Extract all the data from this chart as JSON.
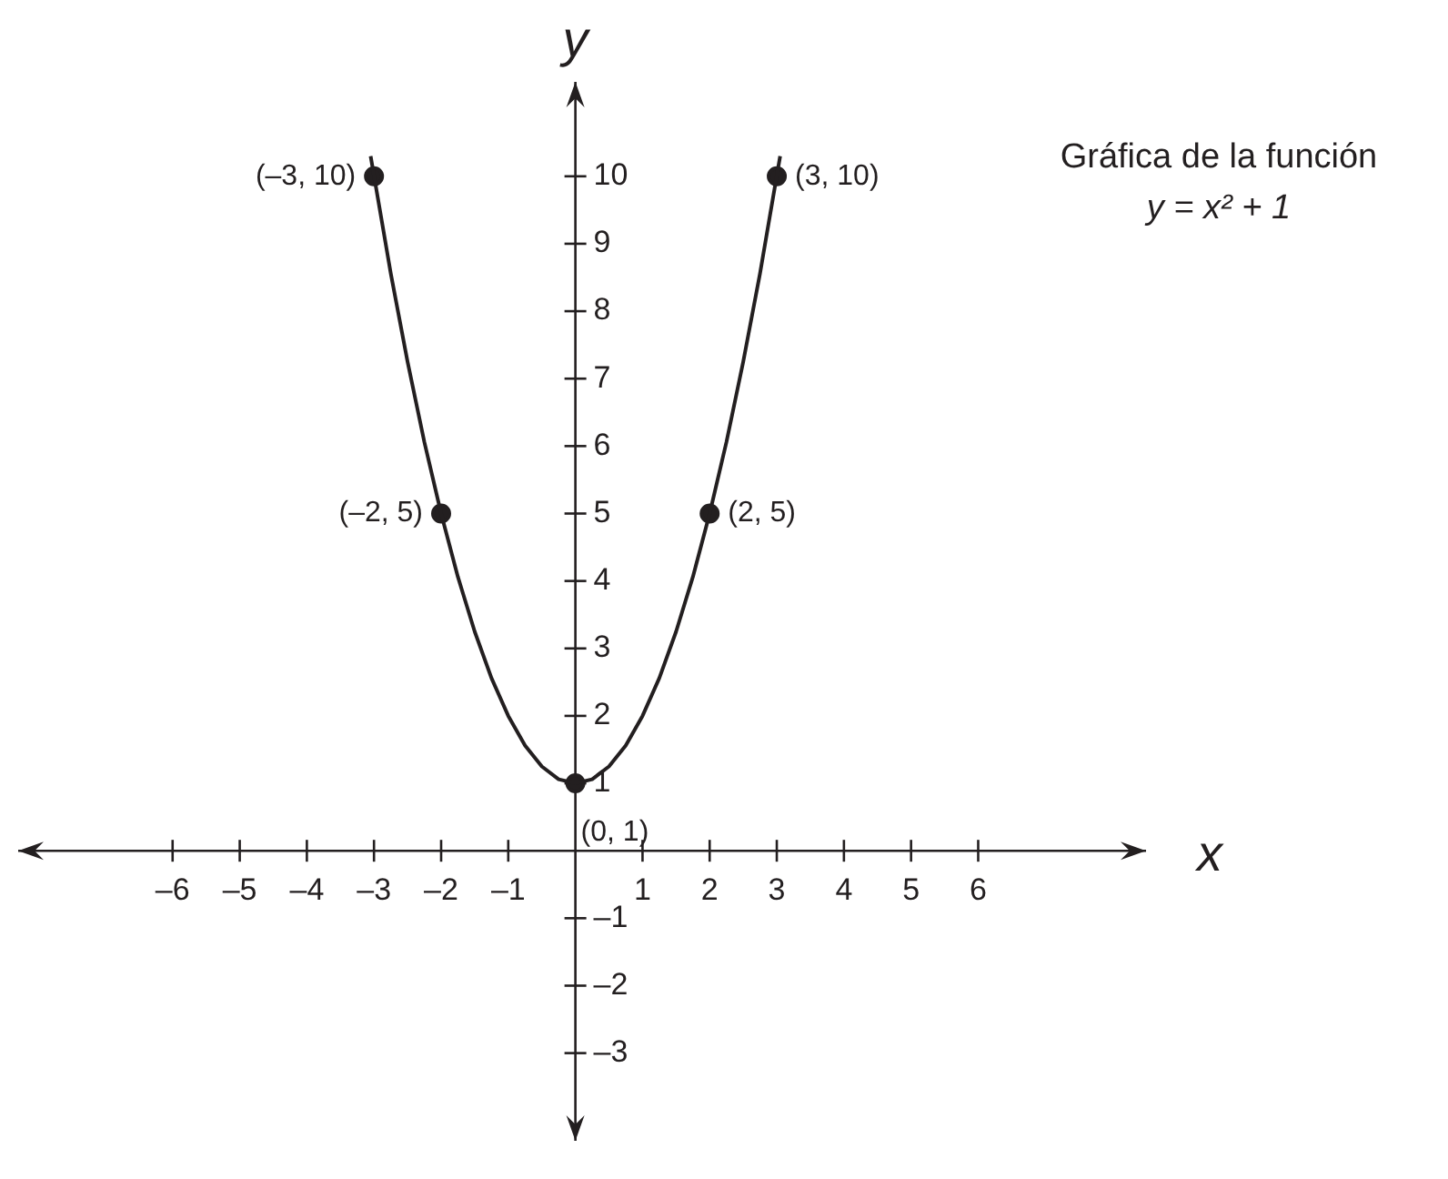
{
  "chart_data": {
    "type": "line",
    "title": "Gráfica de la función",
    "subtitle": "y = x² + 1",
    "xlabel": "x",
    "ylabel": "y",
    "xlim": [
      -8.3,
      8.5
    ],
    "ylim": [
      -4.3,
      11.4
    ],
    "xticks": [
      {
        "value": -6,
        "label": "–6"
      },
      {
        "value": -5,
        "label": "–5"
      },
      {
        "value": -4,
        "label": "–4"
      },
      {
        "value": -3,
        "label": "–3"
      },
      {
        "value": -2,
        "label": "–2"
      },
      {
        "value": -1,
        "label": "–1"
      },
      1,
      2,
      3,
      4,
      5,
      6
    ],
    "yticks": [
      {
        "value": -3,
        "label": "–3"
      },
      {
        "value": -2,
        "label": "–2"
      },
      {
        "value": -1,
        "label": "–1"
      },
      1,
      2,
      3,
      4,
      5,
      6,
      7,
      8,
      9,
      10
    ],
    "series": [
      {
        "type": "line",
        "marker": "none",
        "color": "#231f20",
        "x": [
          -3.05,
          -2.75,
          -2.5,
          -2.25,
          -2,
          -1.75,
          -1.5,
          -1.25,
          -1,
          -0.75,
          -0.5,
          -0.25,
          0,
          0.25,
          0.5,
          0.75,
          1,
          1.25,
          1.5,
          1.75,
          2,
          2.25,
          2.5,
          2.75,
          3.05
        ],
        "values": [
          10.3,
          8.56,
          7.25,
          6.06,
          5,
          4.06,
          3.25,
          2.56,
          2,
          1.56,
          1.25,
          1.06,
          1,
          1.06,
          1.25,
          1.56,
          2,
          2.56,
          3.25,
          4.06,
          5,
          6.06,
          7.25,
          8.56,
          10.3
        ]
      },
      {
        "type": "scatter",
        "marker": "circle",
        "color": "#231f20",
        "x": [
          -3,
          -2,
          0,
          2,
          3
        ],
        "values": [
          10,
          5,
          1,
          5,
          10
        ]
      }
    ],
    "annotations": [
      {
        "text": "(–3, 10)",
        "x": -3,
        "y": 10
      },
      {
        "text": "(3, 10)",
        "x": 3,
        "y": 10
      },
      {
        "text": "(–2, 5)",
        "x": -2,
        "y": 5
      },
      {
        "text": "(2, 5)",
        "x": 2,
        "y": 5
      },
      {
        "text": "(0, 1)",
        "x": 0,
        "y": 1
      }
    ]
  }
}
